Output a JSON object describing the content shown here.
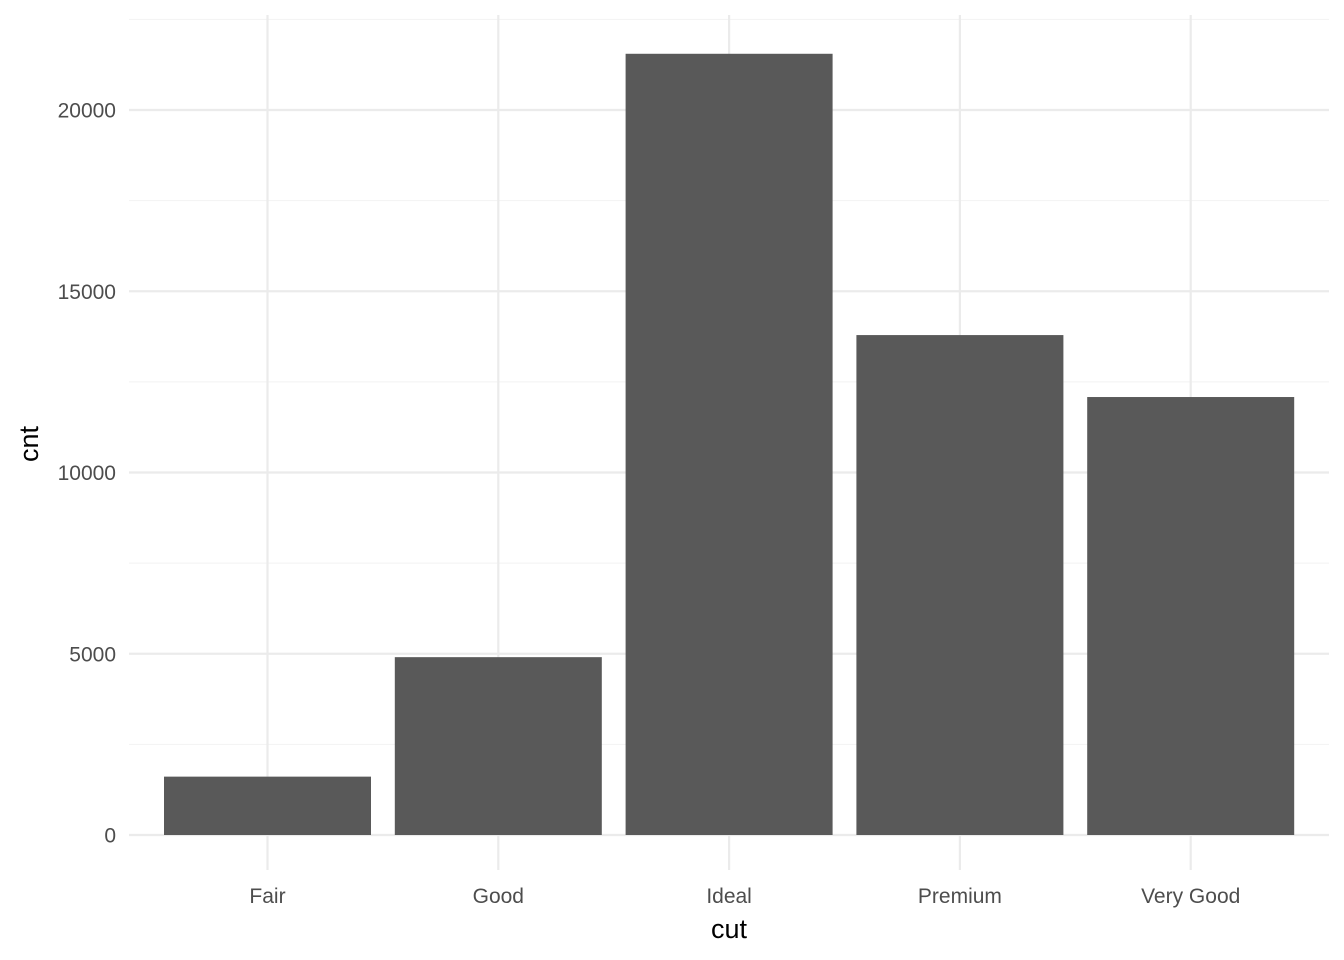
{
  "chart_data": {
    "type": "bar",
    "categories": [
      "Fair",
      "Good",
      "Ideal",
      "Premium",
      "Very Good"
    ],
    "values": [
      1610,
      4906,
      21551,
      13791,
      12082
    ],
    "xlabel": "cut",
    "ylabel": "cnt",
    "ylim": [
      0,
      22629
    ],
    "yticks": [
      0,
      5000,
      10000,
      15000,
      20000
    ],
    "ytick_labels": [
      "0",
      "5000",
      "10000",
      "15000",
      "20000"
    ],
    "grid": true,
    "bar_color": "#595959",
    "theme": "minimal"
  }
}
